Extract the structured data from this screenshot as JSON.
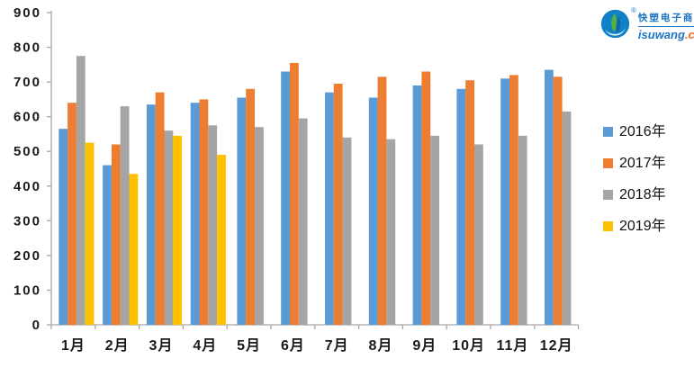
{
  "logo": {
    "brand_cn": "快塑电子商",
    "registered_mark": "®",
    "brand_domain": "isuwang",
    "brand_tld": ".cc"
  },
  "colors": {
    "series_2016": "#5B9BD5",
    "series_2017": "#ED7D31",
    "series_2018": "#A5A5A5",
    "series_2019": "#FFC000",
    "axis_line": "#A6A6A6",
    "tick_text": "#1a1a1a",
    "logo_blue": "#1a75c4",
    "logo_green": "#57AF3F",
    "logo_orange": "#f26522"
  },
  "chart_data": {
    "type": "bar",
    "title": "",
    "xlabel": "",
    "ylabel": "",
    "categories": [
      "1月",
      "2月",
      "3月",
      "4月",
      "5月",
      "6月",
      "7月",
      "8月",
      "9月",
      "10月",
      "11月",
      "12月"
    ],
    "series": [
      {
        "name": "2016年",
        "color": "#5B9BD5",
        "values": [
          565,
          460,
          635,
          640,
          655,
          730,
          670,
          655,
          690,
          680,
          710,
          735
        ]
      },
      {
        "name": "2017年",
        "color": "#ED7D31",
        "values": [
          640,
          520,
          670,
          650,
          680,
          755,
          695,
          715,
          730,
          705,
          720,
          715
        ]
      },
      {
        "name": "2018年",
        "color": "#A5A5A5",
        "values": [
          775,
          630,
          560,
          575,
          570,
          595,
          540,
          535,
          545,
          520,
          545,
          615
        ]
      },
      {
        "name": "2019年",
        "color": "#FFC000",
        "values": [
          525,
          435,
          545,
          490,
          null,
          null,
          null,
          null,
          null,
          null,
          null,
          null
        ]
      }
    ],
    "ylim": [
      0,
      900
    ],
    "ytick_step": 100,
    "grid": false,
    "legend_position": "right"
  }
}
